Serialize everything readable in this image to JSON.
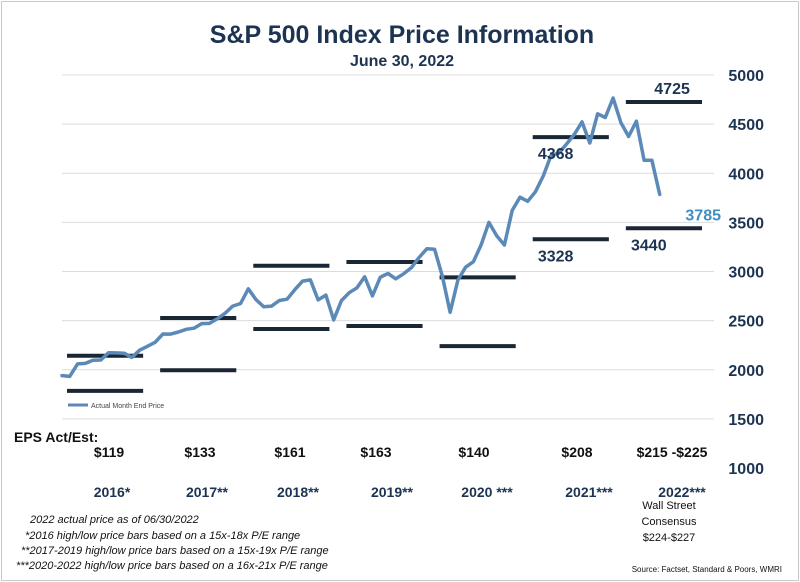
{
  "chart_data": {
    "type": "line",
    "title": "S&P 500 Index Price Information",
    "subtitle": "June 30, 2022",
    "xlabel": "",
    "ylabel": "",
    "ylim": [
      1000,
      5000
    ],
    "yticks": [
      5000,
      4500,
      4000,
      3500,
      3000,
      2500,
      2000,
      1500,
      1000
    ],
    "y_axis_position": "right",
    "grid": "horizontal",
    "legend": {
      "placement": "lower-left",
      "label": "Actual Month End Price",
      "color": "#5b89b8"
    },
    "series": [
      {
        "name": "Actual Month End Price",
        "color": "#5b89b8",
        "x": [
          2016.0,
          2016.083,
          2016.167,
          2016.25,
          2016.333,
          2016.417,
          2016.5,
          2016.583,
          2016.667,
          2016.75,
          2016.833,
          2016.917,
          2017.0,
          2017.083,
          2017.167,
          2017.25,
          2017.333,
          2017.417,
          2017.5,
          2017.583,
          2017.667,
          2017.75,
          2017.833,
          2017.917,
          2018.0,
          2018.083,
          2018.167,
          2018.25,
          2018.333,
          2018.417,
          2018.5,
          2018.583,
          2018.667,
          2018.75,
          2018.833,
          2018.917,
          2019.0,
          2019.083,
          2019.167,
          2019.25,
          2019.333,
          2019.417,
          2019.5,
          2019.583,
          2019.667,
          2019.75,
          2019.833,
          2019.917,
          2020.0,
          2020.083,
          2020.167,
          2020.25,
          2020.333,
          2020.417,
          2020.5,
          2020.583,
          2020.667,
          2020.75,
          2020.833,
          2020.917,
          2021.0,
          2021.083,
          2021.167,
          2021.25,
          2021.333,
          2021.417,
          2021.5,
          2021.583,
          2021.667,
          2021.75,
          2021.833,
          2021.917,
          2022.0,
          2022.083,
          2022.167,
          2022.25,
          2022.333,
          2022.417
        ],
        "values": [
          1940,
          1932,
          2060,
          2065,
          2097,
          2099,
          2174,
          2171,
          2168,
          2126,
          2199,
          2239,
          2279,
          2364,
          2363,
          2384,
          2412,
          2423,
          2470,
          2472,
          2519,
          2575,
          2648,
          2674,
          2824,
          2714,
          2641,
          2648,
          2705,
          2718,
          2816,
          2902,
          2914,
          2711,
          2760,
          2507,
          2704,
          2784,
          2834,
          2946,
          2752,
          2942,
          2980,
          2926,
          2977,
          3038,
          3141,
          3231,
          3226,
          2954,
          2585,
          2912,
          3044,
          3100,
          3271,
          3500,
          3363,
          3270,
          3622,
          3756,
          3714,
          3811,
          3973,
          4181,
          4204,
          4298,
          4395,
          4523,
          4308,
          4605,
          4567,
          4766,
          4516,
          4374,
          4530,
          4132,
          4132,
          3785
        ]
      }
    ],
    "price_bars": [
      {
        "period": "2016*",
        "x_start": 2016.0,
        "x_end": 2017.0,
        "low": 1785,
        "high": 2142
      },
      {
        "period": "2017**",
        "x_start": 2017.0,
        "x_end": 2018.0,
        "low": 1995,
        "high": 2527
      },
      {
        "period": "2018**",
        "x_start": 2018.0,
        "x_end": 2019.0,
        "low": 2415,
        "high": 3059
      },
      {
        "period": "2019**",
        "x_start": 2019.0,
        "x_end": 2020.0,
        "low": 2445,
        "high": 3097
      },
      {
        "period": "2020 ***",
        "x_start": 2020.0,
        "x_end": 2021.0,
        "low": 2240,
        "high": 2940
      },
      {
        "period": "2021***",
        "x_start": 2021.0,
        "x_end": 2022.0,
        "low": 3328,
        "high": 4368
      },
      {
        "period": "2022***",
        "x_start": 2022.0,
        "x_end": 2023.0,
        "low": 3440,
        "high": 4725
      }
    ],
    "annotations": [
      {
        "text": "4725",
        "x": 2022.55,
        "y": 4725,
        "position": "above"
      },
      {
        "text": "4368",
        "x": 2021.3,
        "y": 4368,
        "position": "below"
      },
      {
        "text": "3785",
        "x": 2022.65,
        "y": 3785,
        "position": "below-right",
        "current": true
      },
      {
        "text": "3328",
        "x": 2021.3,
        "y": 3328,
        "position": "below"
      },
      {
        "text": "3440",
        "x": 2022.3,
        "y": 3440,
        "position": "below"
      }
    ],
    "years": [
      "2016*",
      "2017**",
      "2018**",
      "2019**",
      "2020 ***",
      "2021***",
      "2022***"
    ],
    "eps_label": "EPS Act/Est:",
    "eps": [
      "$119",
      "$133",
      "$161",
      "$163",
      "$140",
      "$208",
      "$215 -$225"
    ],
    "consensus": [
      "Wall Street",
      "Consensus",
      "$224-$227"
    ]
  },
  "footnotes": [
    "2022 actual price as of 06/30/2022",
    "*2016 high/low price bars based on a 15x-18x P/E range",
    "**2017-2019 high/low price bars based on a 15x-19x P/E range",
    "***2020-2022 high/low price bars based on a 16x-21x P/E range"
  ],
  "source": "Source: Factset, Standard & Poors, WMRI"
}
